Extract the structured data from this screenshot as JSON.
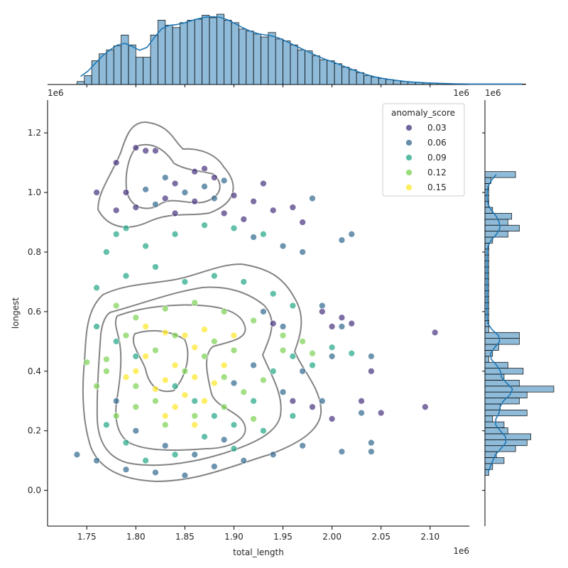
{
  "chart_data": {
    "type": "scatter",
    "xlabel": "total_length",
    "ylabel": "longest",
    "x_offset_label": "1e6",
    "y_offset_label": "1e6",
    "xlim": [
      1.71,
      2.14
    ],
    "ylim": [
      -0.12,
      1.31
    ],
    "x_ticks": [
      "1.75",
      "1.80",
      "1.85",
      "1.90",
      "1.95",
      "2.00",
      "2.05",
      "2.10"
    ],
    "y_ticks": [
      "0.0",
      "0.2",
      "0.4",
      "0.6",
      "0.8",
      "1.0",
      "1.2"
    ],
    "legend": {
      "title": "anomaly_score",
      "placement": "top-right",
      "entries": [
        {
          "label": "0.03",
          "color": "#46327e"
        },
        {
          "label": "0.06",
          "color": "#31688e"
        },
        {
          "label": "0.09",
          "color": "#21a585"
        },
        {
          "label": "0.12",
          "color": "#7ad151"
        },
        {
          "label": "0.15",
          "color": "#fde725"
        }
      ]
    },
    "series": [
      {
        "name": "0.03",
        "points": [
          [
            1.79,
            1.0
          ],
          [
            1.8,
            1.15
          ],
          [
            1.81,
            1.14
          ],
          [
            1.82,
            1.14
          ],
          [
            1.78,
            1.1
          ],
          [
            1.84,
            1.03
          ],
          [
            1.86,
            1.07
          ],
          [
            1.88,
            1.05
          ],
          [
            1.9,
            0.99
          ],
          [
            1.92,
            0.97
          ],
          [
            1.94,
            0.94
          ],
          [
            1.96,
            0.95
          ],
          [
            1.97,
            0.9
          ],
          [
            1.78,
            0.94
          ],
          [
            1.8,
            0.95
          ],
          [
            1.84,
            0.93
          ],
          [
            1.86,
            0.97
          ],
          [
            1.89,
            0.93
          ],
          [
            1.91,
            0.91
          ],
          [
            2.01,
            0.58
          ],
          [
            2.0,
            0.55
          ],
          [
            2.02,
            0.56
          ],
          [
            1.99,
            0.6
          ],
          [
            2.03,
            0.3
          ],
          [
            2.05,
            0.26
          ],
          [
            2.04,
            0.4
          ],
          [
            2.095,
            0.28
          ],
          [
            2.105,
            0.53
          ],
          [
            1.96,
            0.3
          ],
          [
            1.98,
            0.28
          ],
          [
            2.0,
            0.24
          ],
          [
            1.94,
            0.56
          ],
          [
            1.76,
            1.0
          ],
          [
            1.83,
            0.98
          ],
          [
            1.87,
            1.08
          ],
          [
            1.93,
            1.03
          ]
        ]
      },
      {
        "name": "0.06",
        "points": [
          [
            1.81,
            1.01
          ],
          [
            1.83,
            1.05
          ],
          [
            1.85,
            1.0
          ],
          [
            1.87,
            1.02
          ],
          [
            1.89,
            1.04
          ],
          [
            1.82,
            0.96
          ],
          [
            1.88,
            0.98
          ],
          [
            1.92,
            0.85
          ],
          [
            1.95,
            0.82
          ],
          [
            1.97,
            0.8
          ],
          [
            1.99,
            0.62
          ],
          [
            2.01,
            0.84
          ],
          [
            2.02,
            0.86
          ],
          [
            1.93,
            0.6
          ],
          [
            1.95,
            0.55
          ],
          [
            1.74,
            0.12
          ],
          [
            1.76,
            0.1
          ],
          [
            1.79,
            0.07
          ],
          [
            1.82,
            0.06
          ],
          [
            1.85,
            0.05
          ],
          [
            1.88,
            0.08
          ],
          [
            1.91,
            0.1
          ],
          [
            1.94,
            0.12
          ],
          [
            1.97,
            0.15
          ],
          [
            2.01,
            0.13
          ],
          [
            2.04,
            0.13
          ],
          [
            2.04,
            0.16
          ],
          [
            2.03,
            0.26
          ],
          [
            2.04,
            0.45
          ],
          [
            2.0,
            0.45
          ],
          [
            1.99,
            0.3
          ],
          [
            1.97,
            0.4
          ],
          [
            1.95,
            0.33
          ],
          [
            1.92,
            0.42
          ],
          [
            1.9,
            0.36
          ],
          [
            1.78,
            0.3
          ],
          [
            1.8,
            0.2
          ],
          [
            1.83,
            0.15
          ],
          [
            1.86,
            0.12
          ],
          [
            1.89,
            0.17
          ],
          [
            1.98,
            0.98
          ],
          [
            2.01,
            0.55
          ]
        ]
      },
      {
        "name": "0.09",
        "points": [
          [
            1.77,
            0.8
          ],
          [
            1.78,
            0.86
          ],
          [
            1.79,
            0.88
          ],
          [
            1.81,
            0.82
          ],
          [
            1.84,
            0.86
          ],
          [
            1.87,
            0.89
          ],
          [
            1.9,
            0.88
          ],
          [
            1.93,
            0.86
          ],
          [
            1.76,
            0.68
          ],
          [
            1.79,
            0.72
          ],
          [
            1.82,
            0.75
          ],
          [
            1.85,
            0.7
          ],
          [
            1.88,
            0.72
          ],
          [
            1.91,
            0.7
          ],
          [
            1.94,
            0.66
          ],
          [
            1.96,
            0.62
          ],
          [
            1.76,
            0.55
          ],
          [
            1.78,
            0.5
          ],
          [
            1.8,
            0.45
          ],
          [
            1.84,
            0.35
          ],
          [
            1.86,
            0.3
          ],
          [
            1.88,
            0.25
          ],
          [
            1.9,
            0.22
          ],
          [
            1.92,
            0.3
          ],
          [
            1.94,
            0.4
          ],
          [
            1.96,
            0.45
          ],
          [
            1.98,
            0.42
          ],
          [
            1.77,
            0.22
          ],
          [
            1.79,
            0.16
          ],
          [
            1.81,
            0.1
          ],
          [
            1.84,
            0.12
          ],
          [
            1.87,
            0.18
          ],
          [
            1.9,
            0.14
          ],
          [
            1.93,
            0.2
          ],
          [
            1.96,
            0.25
          ],
          [
            2.02,
            0.46
          ],
          [
            2.0,
            0.48
          ]
        ]
      },
      {
        "name": "0.12",
        "points": [
          [
            1.78,
            0.62
          ],
          [
            1.8,
            0.58
          ],
          [
            1.83,
            0.61
          ],
          [
            1.86,
            0.63
          ],
          [
            1.89,
            0.6
          ],
          [
            1.92,
            0.57
          ],
          [
            1.95,
            0.52
          ],
          [
            1.97,
            0.5
          ],
          [
            1.77,
            0.4
          ],
          [
            1.8,
            0.35
          ],
          [
            1.82,
            0.3
          ],
          [
            1.85,
            0.4
          ],
          [
            1.87,
            0.45
          ],
          [
            1.89,
            0.38
          ],
          [
            1.91,
            0.33
          ],
          [
            1.93,
            0.37
          ],
          [
            1.95,
            0.47
          ],
          [
            1.98,
            0.46
          ],
          [
            1.78,
            0.25
          ],
          [
            1.8,
            0.28
          ],
          [
            1.83,
            0.22
          ],
          [
            1.86,
            0.25
          ],
          [
            1.89,
            0.28
          ],
          [
            1.92,
            0.24
          ],
          [
            1.76,
            0.35
          ],
          [
            1.77,
            0.44
          ],
          [
            1.79,
            0.52
          ],
          [
            1.82,
            0.47
          ],
          [
            1.84,
            0.52
          ],
          [
            1.88,
            0.5
          ],
          [
            1.9,
            0.47
          ],
          [
            1.75,
            0.43
          ]
        ]
      },
      {
        "name": "0.15",
        "points": [
          [
            1.81,
            0.55
          ],
          [
            1.83,
            0.53
          ],
          [
            1.85,
            0.52
          ],
          [
            1.87,
            0.54
          ],
          [
            1.84,
            0.42
          ],
          [
            1.86,
            0.38
          ],
          [
            1.88,
            0.36
          ],
          [
            1.83,
            0.37
          ],
          [
            1.82,
            0.34
          ],
          [
            1.85,
            0.32
          ],
          [
            1.87,
            0.3
          ],
          [
            1.8,
            0.4
          ],
          [
            1.79,
            0.38
          ],
          [
            1.81,
            0.45
          ],
          [
            1.86,
            0.48
          ],
          [
            1.89,
            0.42
          ],
          [
            1.9,
            0.52
          ],
          [
            1.84,
            0.28
          ],
          [
            1.86,
            0.22
          ],
          [
            1.83,
            0.25
          ]
        ]
      }
    ],
    "marginal_x_hist": {
      "bin_start": 1.74,
      "bin_width": 0.0075,
      "counts": [
        6,
        18,
        48,
        62,
        70,
        78,
        100,
        80,
        55,
        55,
        100,
        130,
        120,
        115,
        125,
        130,
        132,
        140,
        135,
        142,
        130,
        125,
        112,
        108,
        102,
        96,
        105,
        92,
        88,
        80,
        70,
        68,
        58,
        50,
        48,
        42,
        35,
        30,
        24,
        18,
        15,
        12,
        10,
        8,
        6,
        5,
        4,
        3,
        3,
        2,
        2,
        1,
        1,
        1,
        1,
        1,
        1,
        1,
        1,
        1,
        1
      ]
    },
    "marginal_y_hist": {
      "bin_start": 0.05,
      "bin_width": 0.02,
      "counts": [
        5,
        10,
        25,
        15,
        40,
        55,
        60,
        30,
        25,
        10,
        55,
        20,
        45,
        55,
        90,
        45,
        25,
        50,
        30,
        5,
        10,
        18,
        45,
        45,
        5,
        5,
        5,
        5,
        5,
        5,
        5,
        5,
        5,
        5,
        5,
        5,
        5,
        5,
        5,
        10,
        30,
        45,
        30,
        35,
        10,
        5,
        5,
        5,
        5,
        8,
        40
      ]
    }
  }
}
